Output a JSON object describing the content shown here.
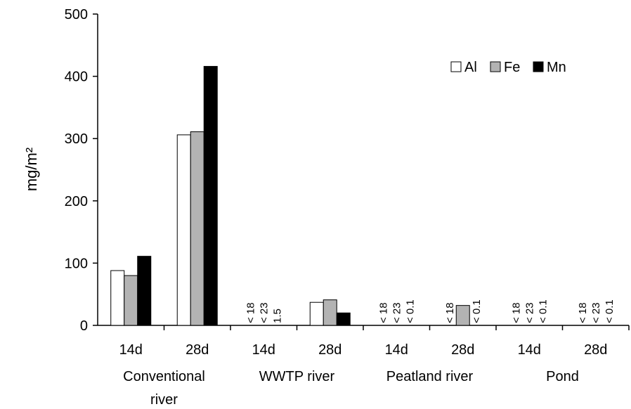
{
  "chart_data": {
    "type": "bar",
    "ylabel": "mg/m²",
    "ylim": [
      0,
      500
    ],
    "yticks": [
      0,
      100,
      200,
      300,
      400,
      500
    ],
    "grid": false,
    "legend_position": "top-right",
    "categories": [
      "14d",
      "28d",
      "14d",
      "28d",
      "14d",
      "28d",
      "14d",
      "28d"
    ],
    "groups": [
      {
        "label": "Conventional river",
        "lines": [
          "Conventional",
          "river"
        ],
        "span": [
          0,
          1
        ]
      },
      {
        "label": "WWTP river",
        "lines": [
          "WWTP river"
        ],
        "span": [
          2,
          3
        ]
      },
      {
        "label": "Peatland river",
        "lines": [
          "Peatland river"
        ],
        "span": [
          4,
          5
        ]
      },
      {
        "label": "Pond",
        "lines": [
          "Pond"
        ],
        "span": [
          6,
          7
        ]
      }
    ],
    "series": [
      {
        "name": "Al",
        "color": "#ffffff",
        "values": [
          88,
          306,
          null,
          37,
          null,
          null,
          null,
          null
        ]
      },
      {
        "name": "Fe",
        "color": "#b3b3b3",
        "values": [
          80,
          311,
          null,
          41,
          null,
          32,
          null,
          null
        ]
      },
      {
        "name": "Mn",
        "color": "#000000",
        "values": [
          111,
          416,
          null,
          20,
          null,
          null,
          null,
          null
        ]
      }
    ],
    "annotations": [
      {
        "category": 2,
        "series": 0,
        "text": "< 18"
      },
      {
        "category": 2,
        "series": 1,
        "text": "< 23"
      },
      {
        "category": 2,
        "series": 2,
        "text": "1.5"
      },
      {
        "category": 4,
        "series": 0,
        "text": "< 18"
      },
      {
        "category": 4,
        "series": 1,
        "text": "< 23"
      },
      {
        "category": 4,
        "series": 2,
        "text": "< 0.1"
      },
      {
        "category": 5,
        "series": 0,
        "text": "< 18"
      },
      {
        "category": 5,
        "series": 2,
        "text": "< 0.1"
      },
      {
        "category": 6,
        "series": 0,
        "text": "< 18"
      },
      {
        "category": 6,
        "series": 1,
        "text": "< 23"
      },
      {
        "category": 6,
        "series": 2,
        "text": "< 0.1"
      },
      {
        "category": 7,
        "series": 0,
        "text": "< 18"
      },
      {
        "category": 7,
        "series": 1,
        "text": "< 23"
      },
      {
        "category": 7,
        "series": 2,
        "text": "< 0.1"
      }
    ]
  }
}
